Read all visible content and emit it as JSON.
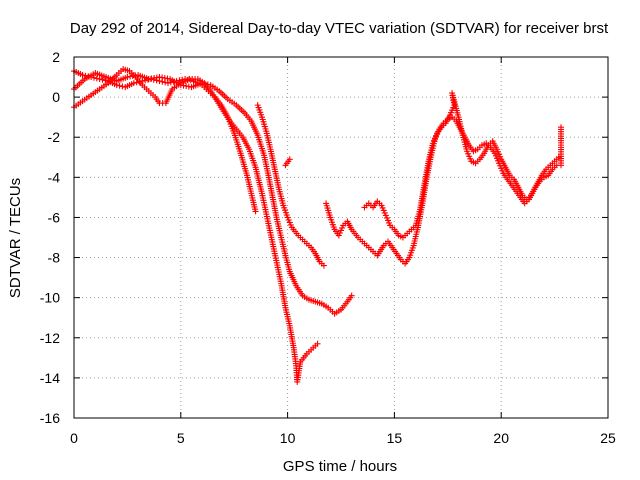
{
  "chart_data": {
    "type": "scatter",
    "title": "Day 292 of 2014, Sidereal Day-to-day VTEC variation (SDTVAR) for receiver brst",
    "xlabel": "GPS time / hours",
    "ylabel": "SDTVAR / TECUs",
    "xlim": [
      0,
      25
    ],
    "ylim": [
      -16,
      2
    ],
    "xticks": [
      0,
      5,
      10,
      15,
      20,
      25
    ],
    "yticks": [
      2,
      0,
      -2,
      -4,
      -6,
      -8,
      -10,
      -12,
      -14,
      -16
    ],
    "grid": true,
    "marker": "+",
    "marker_color": "#ff0000",
    "series": [
      {
        "points": [
          [
            0.0,
            1.3
          ],
          [
            0.4,
            1.1
          ],
          [
            0.8,
            1.0
          ],
          [
            1.2,
            0.9
          ],
          [
            1.6,
            0.8
          ],
          [
            2.0,
            0.6
          ],
          [
            2.4,
            0.5
          ],
          [
            2.8,
            0.7
          ],
          [
            3.2,
            0.8
          ],
          [
            3.6,
            0.9
          ],
          [
            4.0,
            0.8
          ],
          [
            4.4,
            0.7
          ],
          [
            4.8,
            0.8
          ],
          [
            5.2,
            0.9
          ],
          [
            5.6,
            0.8
          ],
          [
            6.0,
            0.6
          ],
          [
            6.3,
            0.3
          ],
          [
            6.6,
            0.0
          ],
          [
            6.9,
            -0.4
          ],
          [
            7.2,
            -1.0
          ],
          [
            7.5,
            -1.8
          ],
          [
            7.8,
            -2.8
          ],
          [
            8.1,
            -3.9
          ],
          [
            8.3,
            -4.8
          ],
          [
            8.5,
            -5.7
          ]
        ]
      },
      {
        "points": [
          [
            0.0,
            -0.5
          ],
          [
            0.4,
            -0.2
          ],
          [
            0.8,
            0.1
          ],
          [
            1.2,
            0.4
          ],
          [
            1.6,
            0.7
          ],
          [
            2.0,
            1.1
          ],
          [
            2.3,
            1.4
          ],
          [
            2.6,
            1.3
          ],
          [
            2.9,
            1.0
          ],
          [
            3.2,
            0.6
          ],
          [
            3.5,
            0.3
          ],
          [
            3.8,
            0.0
          ],
          [
            4.0,
            -0.3
          ],
          [
            4.3,
            -0.3
          ],
          [
            4.6,
            0.4
          ],
          [
            5.0,
            0.7
          ],
          [
            5.4,
            0.9
          ],
          [
            5.8,
            0.9
          ],
          [
            6.1,
            0.7
          ],
          [
            6.4,
            0.3
          ],
          [
            6.7,
            -0.2
          ],
          [
            7.0,
            -0.7
          ],
          [
            7.3,
            -1.2
          ],
          [
            7.6,
            -1.6
          ],
          [
            7.9,
            -2.0
          ],
          [
            8.2,
            -2.6
          ],
          [
            8.5,
            -3.5
          ],
          [
            8.8,
            -4.8
          ],
          [
            9.1,
            -6.3
          ],
          [
            9.4,
            -7.8
          ],
          [
            9.7,
            -9.3
          ],
          [
            9.9,
            -10.5
          ],
          [
            10.1,
            -11.4
          ],
          [
            10.3,
            -12.6
          ],
          [
            10.4,
            -13.4
          ],
          [
            10.45,
            -14.2
          ],
          [
            10.6,
            -13.2
          ],
          [
            10.9,
            -12.8
          ],
          [
            11.2,
            -12.5
          ],
          [
            11.4,
            -12.3
          ]
        ]
      },
      {
        "points": [
          [
            0.0,
            0.4
          ],
          [
            0.5,
            0.9
          ],
          [
            1.0,
            1.2
          ],
          [
            1.5,
            1.0
          ],
          [
            2.0,
            0.8
          ],
          [
            2.5,
            1.0
          ],
          [
            3.0,
            1.1
          ],
          [
            3.5,
            0.9
          ],
          [
            4.0,
            1.0
          ],
          [
            4.5,
            0.9
          ],
          [
            5.0,
            0.6
          ],
          [
            5.5,
            0.5
          ],
          [
            6.0,
            0.7
          ],
          [
            6.4,
            0.6
          ],
          [
            6.8,
            0.3
          ],
          [
            7.2,
            -0.1
          ],
          [
            7.6,
            -0.4
          ],
          [
            8.0,
            -0.8
          ],
          [
            8.3,
            -1.2
          ],
          [
            8.6,
            -1.9
          ],
          [
            8.9,
            -2.9
          ],
          [
            9.1,
            -3.9
          ],
          [
            9.3,
            -5.0
          ],
          [
            9.5,
            -6.1
          ],
          [
            9.7,
            -7.0
          ],
          [
            9.9,
            -7.9
          ],
          [
            10.1,
            -8.7
          ],
          [
            10.4,
            -9.4
          ],
          [
            10.7,
            -9.9
          ],
          [
            11.0,
            -10.1
          ],
          [
            11.3,
            -10.2
          ],
          [
            11.6,
            -10.3
          ],
          [
            11.9,
            -10.5
          ],
          [
            12.2,
            -10.8
          ],
          [
            12.5,
            -10.6
          ],
          [
            12.8,
            -10.2
          ],
          [
            13.0,
            -9.9
          ]
        ]
      },
      {
        "points": [
          [
            8.6,
            -0.4
          ],
          [
            8.8,
            -1.0
          ],
          [
            9.0,
            -1.7
          ],
          [
            9.2,
            -2.6
          ],
          [
            9.4,
            -3.6
          ],
          [
            9.6,
            -4.6
          ],
          [
            9.8,
            -5.4
          ],
          [
            10.0,
            -6.0
          ],
          [
            10.2,
            -6.5
          ],
          [
            10.5,
            -6.9
          ],
          [
            10.8,
            -7.2
          ],
          [
            11.1,
            -7.5
          ],
          [
            11.3,
            -7.8
          ],
          [
            11.5,
            -8.2
          ],
          [
            11.7,
            -8.4
          ],
          [
            9.9,
            -3.4
          ],
          [
            10.1,
            -3.1
          ]
        ]
      },
      {
        "points": [
          [
            11.8,
            -5.3
          ],
          [
            12.0,
            -6.0
          ],
          [
            12.2,
            -6.6
          ],
          [
            12.4,
            -6.9
          ],
          [
            12.6,
            -6.4
          ],
          [
            12.8,
            -6.2
          ],
          [
            13.0,
            -6.6
          ],
          [
            13.3,
            -7.0
          ],
          [
            13.6,
            -7.3
          ],
          [
            13.9,
            -7.6
          ],
          [
            14.2,
            -7.9
          ],
          [
            14.5,
            -7.4
          ],
          [
            14.7,
            -7.2
          ],
          [
            14.9,
            -7.5
          ],
          [
            15.1,
            -7.8
          ],
          [
            15.3,
            -8.1
          ],
          [
            15.5,
            -8.3
          ],
          [
            15.7,
            -8.0
          ],
          [
            15.9,
            -7.4
          ],
          [
            16.1,
            -6.5
          ],
          [
            16.3,
            -5.4
          ],
          [
            16.5,
            -4.1
          ],
          [
            16.7,
            -3.0
          ],
          [
            16.9,
            -2.1
          ],
          [
            17.1,
            -1.6
          ],
          [
            17.3,
            -1.3
          ],
          [
            17.5,
            -1.1
          ],
          [
            17.7,
            -1.0
          ],
          [
            17.9,
            -1.2
          ],
          [
            18.1,
            -1.6
          ],
          [
            18.3,
            -2.0
          ],
          [
            18.5,
            -2.4
          ],
          [
            18.7,
            -2.7
          ],
          [
            18.9,
            -2.6
          ],
          [
            19.1,
            -2.4
          ],
          [
            19.3,
            -2.3
          ],
          [
            19.5,
            -2.5
          ],
          [
            19.7,
            -2.8
          ],
          [
            19.9,
            -3.3
          ],
          [
            20.1,
            -3.8
          ],
          [
            20.3,
            -4.1
          ],
          [
            20.5,
            -4.4
          ],
          [
            20.7,
            -4.7
          ],
          [
            20.9,
            -5.0
          ],
          [
            21.1,
            -5.3
          ],
          [
            21.3,
            -5.1
          ],
          [
            21.5,
            -4.7
          ],
          [
            21.7,
            -4.3
          ],
          [
            21.9,
            -3.9
          ],
          [
            22.1,
            -3.6
          ],
          [
            22.3,
            -3.4
          ],
          [
            22.5,
            -3.2
          ],
          [
            22.7,
            -3.0
          ]
        ]
      },
      {
        "points": [
          [
            13.6,
            -5.5
          ],
          [
            13.8,
            -5.3
          ],
          [
            14.0,
            -5.5
          ],
          [
            14.2,
            -5.2
          ],
          [
            14.4,
            -5.4
          ],
          [
            14.6,
            -5.9
          ],
          [
            14.8,
            -6.4
          ],
          [
            15.0,
            -6.6
          ],
          [
            15.2,
            -6.9
          ],
          [
            15.4,
            -7.0
          ],
          [
            15.6,
            -6.8
          ],
          [
            15.8,
            -6.6
          ],
          [
            16.0,
            -6.4
          ],
          [
            16.2,
            -5.6
          ],
          [
            16.4,
            -4.4
          ],
          [
            16.6,
            -3.2
          ],
          [
            16.8,
            -2.3
          ],
          [
            17.0,
            -1.8
          ],
          [
            17.2,
            -1.5
          ],
          [
            17.4,
            -1.3
          ],
          [
            17.6,
            -0.9
          ],
          [
            17.8,
            -0.4
          ],
          [
            17.7,
            0.2
          ],
          [
            18.0,
            -1.0
          ],
          [
            18.2,
            -1.9
          ],
          [
            18.4,
            -2.7
          ],
          [
            18.6,
            -3.2
          ],
          [
            18.8,
            -3.3
          ],
          [
            19.0,
            -3.1
          ],
          [
            19.2,
            -2.8
          ],
          [
            19.4,
            -2.4
          ],
          [
            19.6,
            -2.2
          ],
          [
            19.8,
            -2.6
          ],
          [
            20.0,
            -3.1
          ],
          [
            20.2,
            -3.5
          ],
          [
            20.4,
            -3.9
          ],
          [
            20.6,
            -4.1
          ],
          [
            20.8,
            -4.5
          ],
          [
            21.0,
            -4.9
          ],
          [
            21.2,
            -5.1
          ],
          [
            21.4,
            -4.9
          ],
          [
            21.6,
            -4.5
          ],
          [
            21.8,
            -4.2
          ],
          [
            22.0,
            -4.0
          ],
          [
            22.2,
            -3.9
          ],
          [
            22.4,
            -3.6
          ],
          [
            22.6,
            -3.4
          ],
          [
            22.8,
            -3.4
          ],
          [
            22.8,
            -1.5
          ]
        ]
      }
    ]
  }
}
